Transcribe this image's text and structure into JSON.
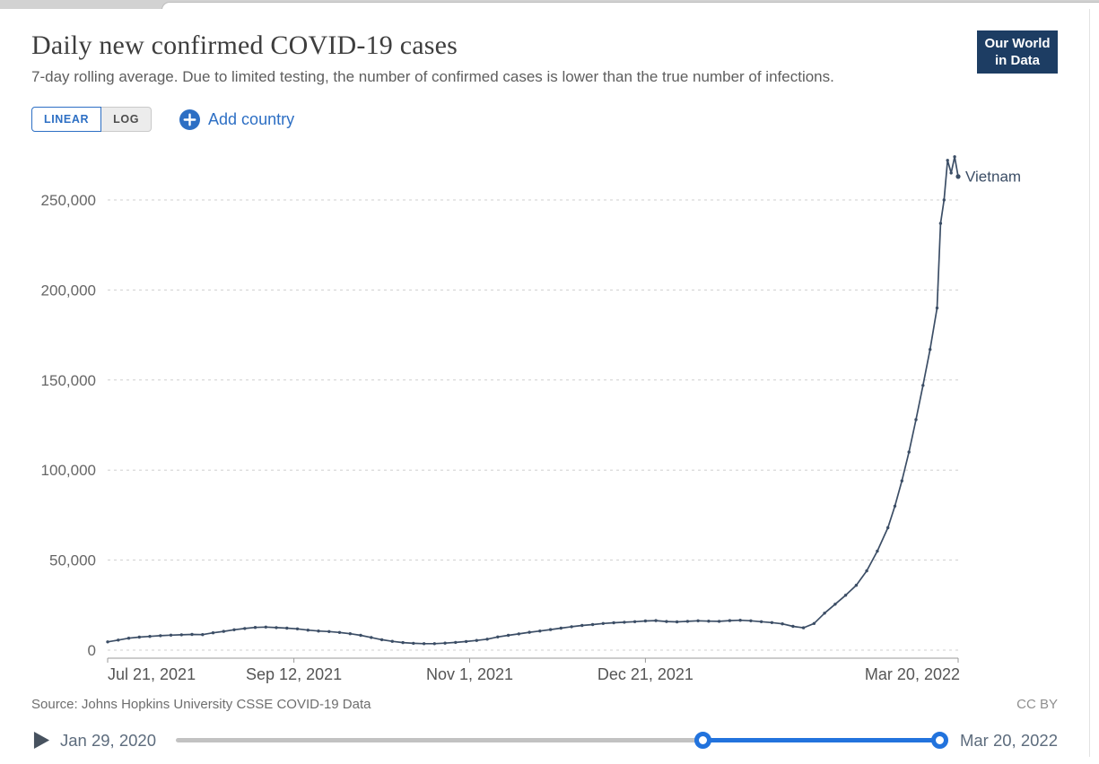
{
  "header": {
    "title": "Daily new confirmed COVID-19 cases",
    "subtitle": "7-day rolling average. Due to limited testing, the number of confirmed cases is lower than the true number of infections.",
    "logo": {
      "line1": "Our World",
      "line2": "in Data"
    }
  },
  "controls": {
    "linear_label": "LINEAR",
    "log_label": "LOG",
    "active_scale": "LINEAR",
    "add_country_label": "Add country"
  },
  "colors": {
    "accent_blue": "#2d6fc4",
    "timeline_blue": "#2273dd",
    "series_line": "#3c4e66",
    "logo_background": "#1d3d63"
  },
  "chart_data": {
    "type": "line",
    "title": "Daily new confirmed COVID-19 cases",
    "xlabel": "",
    "ylabel": "",
    "grid": "horizontal-dashed",
    "legend_position": "end-of-line-label",
    "x_range": [
      "2021-07-21",
      "2022-03-20"
    ],
    "ylim": [
      0,
      280000
    ],
    "y_ticks": [
      {
        "v": 0,
        "label": "0"
      },
      {
        "v": 50000,
        "label": "50,000"
      },
      {
        "v": 100000,
        "label": "100,000"
      },
      {
        "v": 150000,
        "label": "150,000"
      },
      {
        "v": 200000,
        "label": "200,000"
      },
      {
        "v": 250000,
        "label": "250,000"
      }
    ],
    "x_ticks": [
      {
        "date": "2021-07-21",
        "label": "Jul 21, 2021",
        "anchor": "start"
      },
      {
        "date": "2021-09-12",
        "label": "Sep 12, 2021",
        "anchor": "middle"
      },
      {
        "date": "2021-11-01",
        "label": "Nov 1, 2021",
        "anchor": "middle"
      },
      {
        "date": "2021-12-21",
        "label": "Dec 21, 2021",
        "anchor": "middle"
      },
      {
        "date": "2022-03-20",
        "label": "Mar 20, 2022",
        "anchor": "end"
      }
    ],
    "series": [
      {
        "name": "Vietnam",
        "color": "#3c4e66",
        "points": [
          [
            "2021-07-21",
            4600
          ],
          [
            "2021-07-24",
            5600
          ],
          [
            "2021-07-27",
            6600
          ],
          [
            "2021-07-30",
            7200
          ],
          [
            "2021-08-02",
            7600
          ],
          [
            "2021-08-05",
            8000
          ],
          [
            "2021-08-08",
            8300
          ],
          [
            "2021-08-11",
            8500
          ],
          [
            "2021-08-14",
            8700
          ],
          [
            "2021-08-17",
            8600
          ],
          [
            "2021-08-20",
            9600
          ],
          [
            "2021-08-23",
            10400
          ],
          [
            "2021-08-26",
            11300
          ],
          [
            "2021-08-29",
            12000
          ],
          [
            "2021-09-01",
            12600
          ],
          [
            "2021-09-04",
            12800
          ],
          [
            "2021-09-07",
            12500
          ],
          [
            "2021-09-10",
            12200
          ],
          [
            "2021-09-13",
            11800
          ],
          [
            "2021-09-16",
            11100
          ],
          [
            "2021-09-19",
            10600
          ],
          [
            "2021-09-22",
            10300
          ],
          [
            "2021-09-25",
            9800
          ],
          [
            "2021-09-28",
            9100
          ],
          [
            "2021-10-01",
            8200
          ],
          [
            "2021-10-04",
            7000
          ],
          [
            "2021-10-07",
            5800
          ],
          [
            "2021-10-10",
            4900
          ],
          [
            "2021-10-13",
            4200
          ],
          [
            "2021-10-16",
            3800
          ],
          [
            "2021-10-19",
            3600
          ],
          [
            "2021-10-22",
            3600
          ],
          [
            "2021-10-25",
            3900
          ],
          [
            "2021-10-28",
            4300
          ],
          [
            "2021-10-31",
            4800
          ],
          [
            "2021-11-03",
            5400
          ],
          [
            "2021-11-06",
            6100
          ],
          [
            "2021-11-09",
            7300
          ],
          [
            "2021-11-12",
            8200
          ],
          [
            "2021-11-15",
            9000
          ],
          [
            "2021-11-18",
            9900
          ],
          [
            "2021-11-21",
            10600
          ],
          [
            "2021-11-24",
            11400
          ],
          [
            "2021-11-27",
            12200
          ],
          [
            "2021-11-30",
            13000
          ],
          [
            "2021-12-03",
            13700
          ],
          [
            "2021-12-06",
            14200
          ],
          [
            "2021-12-09",
            14800
          ],
          [
            "2021-12-12",
            15200
          ],
          [
            "2021-12-15",
            15500
          ],
          [
            "2021-12-18",
            15800
          ],
          [
            "2021-12-21",
            16200
          ],
          [
            "2021-12-24",
            16400
          ],
          [
            "2021-12-27",
            15900
          ],
          [
            "2021-12-30",
            15700
          ],
          [
            "2022-01-02",
            16000
          ],
          [
            "2022-01-05",
            16300
          ],
          [
            "2022-01-08",
            16100
          ],
          [
            "2022-01-11",
            16000
          ],
          [
            "2022-01-14",
            16400
          ],
          [
            "2022-01-17",
            16600
          ],
          [
            "2022-01-20",
            16300
          ],
          [
            "2022-01-23",
            15800
          ],
          [
            "2022-01-26",
            15300
          ],
          [
            "2022-01-29",
            14600
          ],
          [
            "2022-02-01",
            13200
          ],
          [
            "2022-02-04",
            12400
          ],
          [
            "2022-02-07",
            14800
          ],
          [
            "2022-02-10",
            20500
          ],
          [
            "2022-02-13",
            25500
          ],
          [
            "2022-02-16",
            30500
          ],
          [
            "2022-02-19",
            36000
          ],
          [
            "2022-02-22",
            44000
          ],
          [
            "2022-02-25",
            55000
          ],
          [
            "2022-02-28",
            68000
          ],
          [
            "2022-03-02",
            80000
          ],
          [
            "2022-03-04",
            94000
          ],
          [
            "2022-03-06",
            110000
          ],
          [
            "2022-03-08",
            128000
          ],
          [
            "2022-03-10",
            147000
          ],
          [
            "2022-03-12",
            167000
          ],
          [
            "2022-03-14",
            190000
          ],
          [
            "2022-03-15",
            237000
          ],
          [
            "2022-03-16",
            250000
          ],
          [
            "2022-03-17",
            272000
          ],
          [
            "2022-03-18",
            265000
          ],
          [
            "2022-03-19",
            274000
          ],
          [
            "2022-03-20",
            263000
          ]
        ]
      }
    ]
  },
  "footer": {
    "source_prefix": "Source:",
    "source_name": "Johns Hopkins University CSSE COVID-19 Data",
    "license": "CC BY"
  },
  "timeline": {
    "start_label": "Jan 29, 2020",
    "end_label": "Mar 20, 2022",
    "selected_range": [
      0.69,
      1.0
    ]
  }
}
